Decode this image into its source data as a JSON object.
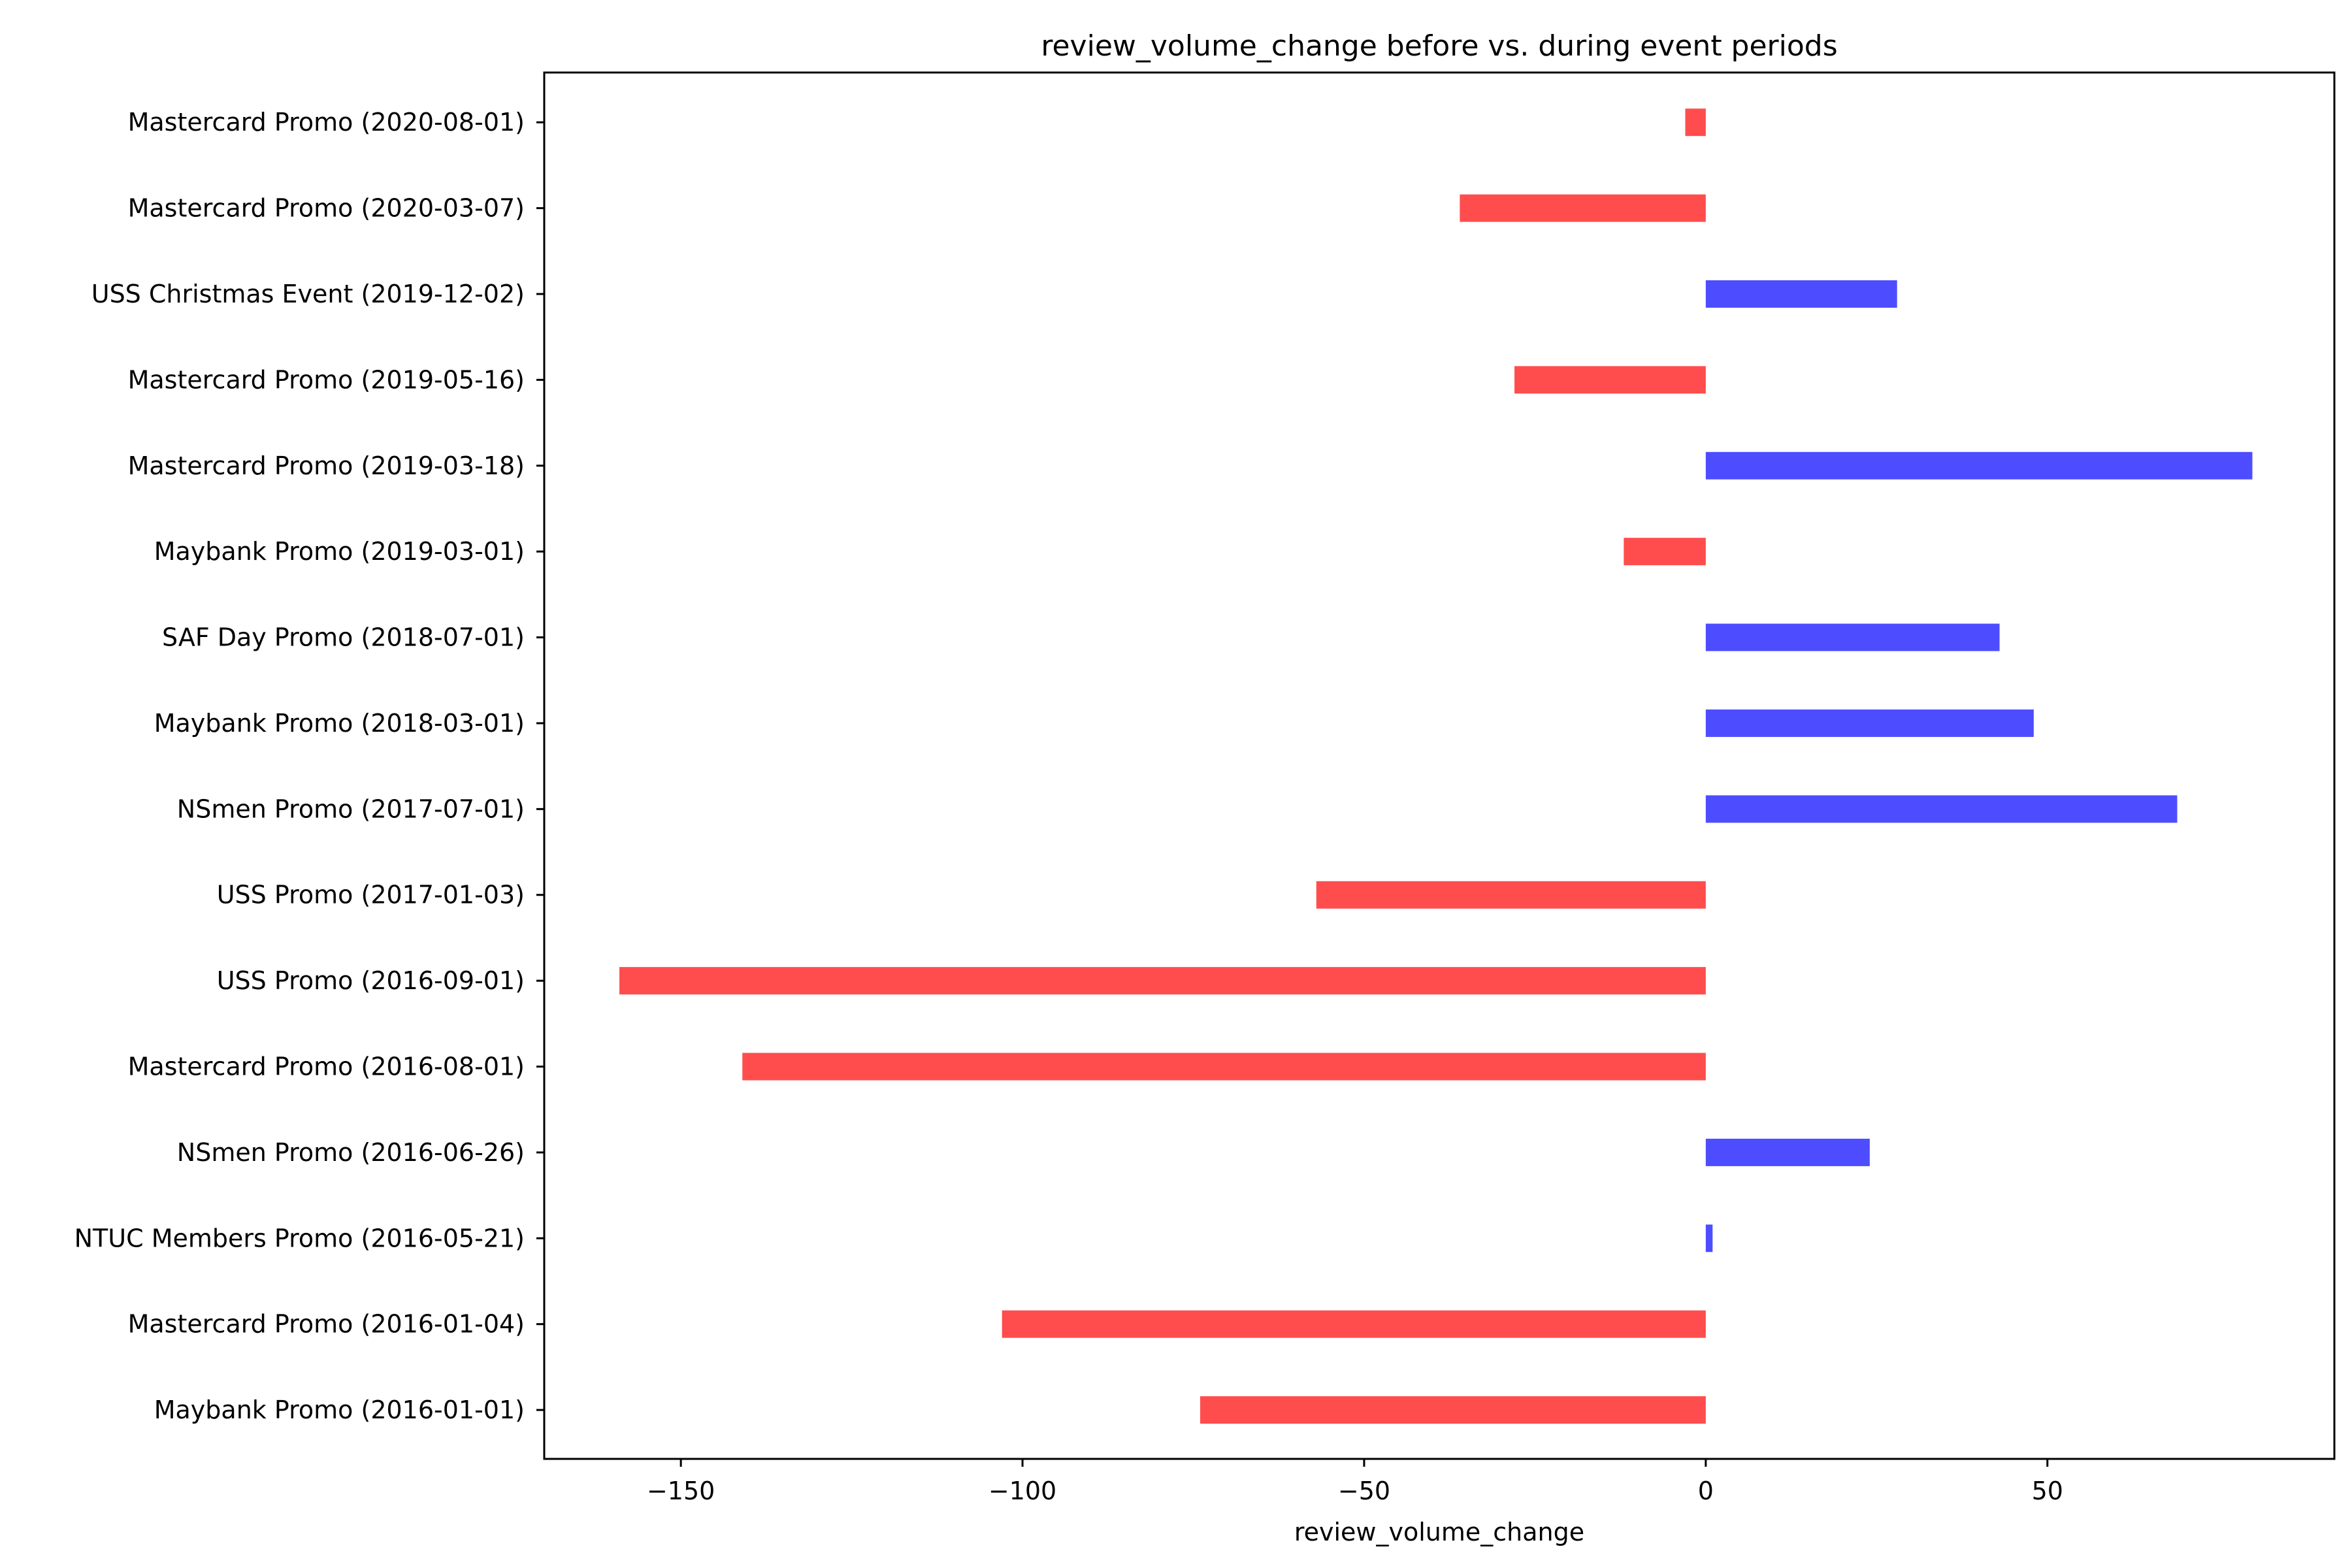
{
  "chart_data": {
    "type": "bar",
    "orientation": "horizontal",
    "title": "review_volume_change before vs. during event periods",
    "xlabel": "review_volume_change",
    "ylabel": "",
    "xlim": [
      -170,
      92
    ],
    "xticks": [
      -150,
      -100,
      -50,
      0,
      50
    ],
    "xtick_labels": [
      "−150",
      "−100",
      "−50",
      "0",
      "50"
    ],
    "grid": false,
    "legend": "none",
    "colors": {
      "positive": "#4d4dff",
      "negative": "#ff4d4d"
    },
    "categories": [
      "Mastercard Promo (2020-08-01)",
      "Mastercard Promo (2020-03-07)",
      "USS Christmas Event (2019-12-02)",
      "Mastercard Promo (2019-05-16)",
      "Mastercard Promo (2019-03-18)",
      "Maybank Promo (2019-03-01)",
      "SAF Day Promo (2018-07-01)",
      "Maybank Promo (2018-03-01)",
      "NSmen Promo (2017-07-01)",
      "USS Promo (2017-01-03)",
      "USS Promo (2016-09-01)",
      "Mastercard Promo (2016-08-01)",
      "NSmen Promo (2016-06-26)",
      "NTUC Members Promo (2016-05-21)",
      "Mastercard Promo (2016-01-04)",
      "Maybank Promo (2016-01-01)"
    ],
    "values": [
      -3,
      -36,
      28,
      -28,
      80,
      -12,
      43,
      48,
      69,
      -57,
      -159,
      -141,
      24,
      1,
      -103,
      -74
    ]
  }
}
